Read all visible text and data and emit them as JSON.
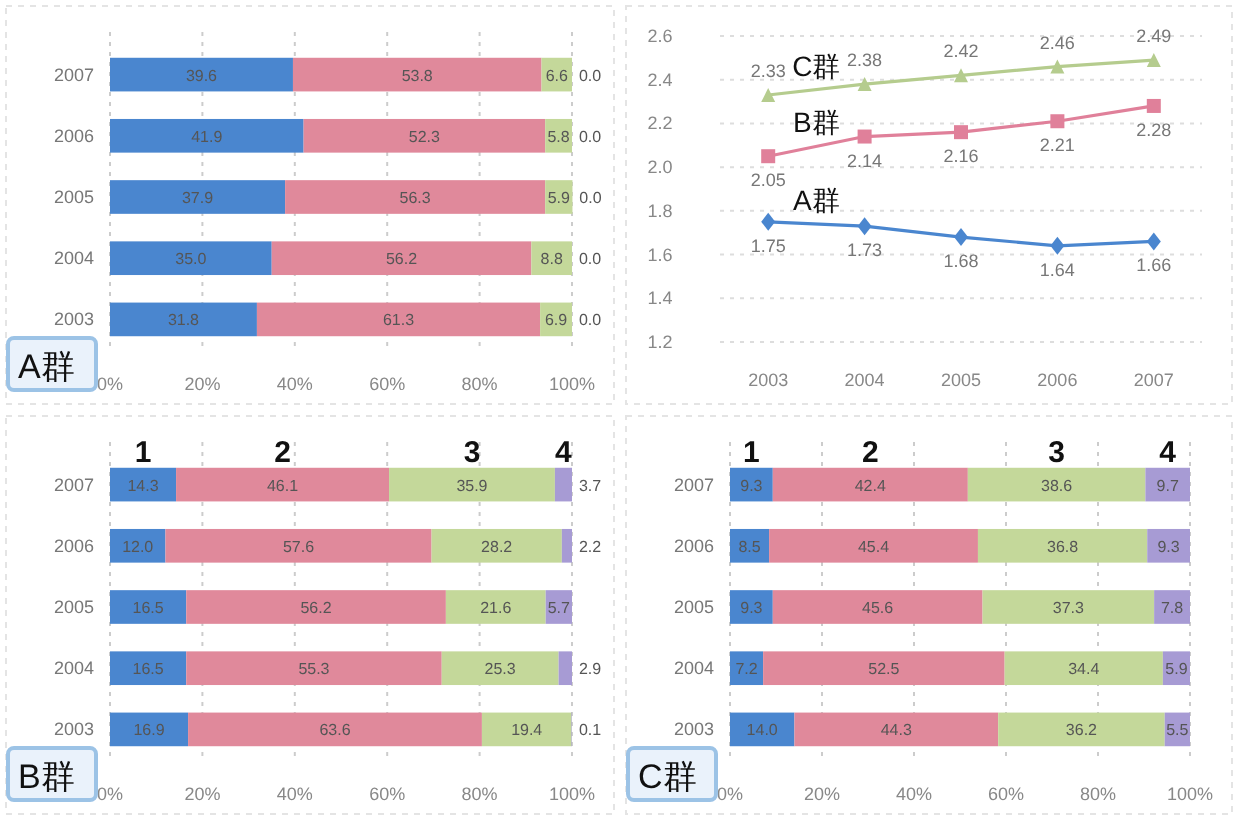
{
  "chart_data": [
    {
      "type": "bar",
      "orientation": "horizontal",
      "stacked": true,
      "title": "A群",
      "grid": "x",
      "categories": [
        "2007",
        "2006",
        "2005",
        "2004",
        "2003"
      ],
      "xlim": [
        0,
        100
      ],
      "xticks": [
        {
          "value": 0,
          "label": "0%"
        },
        {
          "value": 20,
          "label": "20%"
        },
        {
          "value": 40,
          "label": "40%"
        },
        {
          "value": 60,
          "label": "60%"
        },
        {
          "value": 80,
          "label": "80%"
        },
        {
          "value": 100,
          "label": "100%"
        }
      ],
      "series": [
        {
          "color": "#4a86cf",
          "values": [
            39.6,
            41.9,
            37.9,
            35.0,
            31.8
          ],
          "value_labels": [
            "39.6",
            "41.9",
            "37.9",
            "35.0",
            "31.8"
          ]
        },
        {
          "color": "#e0899b",
          "values": [
            53.8,
            52.3,
            56.3,
            56.2,
            61.3
          ],
          "value_labels": [
            "53.8",
            "52.3",
            "56.3",
            "56.2",
            "61.3"
          ]
        },
        {
          "color": "#c4d89a",
          "values": [
            6.6,
            5.8,
            5.9,
            8.8,
            6.9
          ],
          "value_labels": [
            "6.6",
            "5.8",
            "5.9",
            "8.8",
            "6.9"
          ]
        },
        {
          "color": "#a79bd4",
          "values": [
            0,
            0,
            0,
            0,
            0
          ],
          "value_labels": [
            "0.0",
            "0.0",
            "0.0",
            "0.0",
            "0.0"
          ]
        }
      ]
    },
    {
      "type": "line",
      "grid": "y",
      "marker": "circle",
      "data_labels": true,
      "categories": [
        "2003",
        "2004",
        "2005",
        "2006",
        "2007"
      ],
      "ylim": [
        1.2,
        2.6
      ],
      "yticks": [
        {
          "value": 1.2,
          "label": "1.2"
        },
        {
          "value": 1.4,
          "label": "1.4"
        },
        {
          "value": 1.6,
          "label": "1.6"
        },
        {
          "value": 1.8,
          "label": "1.8"
        },
        {
          "value": 2.0,
          "label": "2.0"
        },
        {
          "value": 2.2,
          "label": "2.2"
        },
        {
          "value": 2.4,
          "label": "2.4"
        },
        {
          "value": 2.6,
          "label": "2.6"
        }
      ],
      "series": [
        {
          "name": "A群",
          "color": "#4a86cf",
          "marker": "diamond",
          "values": [
            1.75,
            1.73,
            1.68,
            1.64,
            1.66
          ]
        },
        {
          "name": "B群",
          "color": "#e0809a",
          "marker": "square",
          "values": [
            2.05,
            2.14,
            2.16,
            2.21,
            2.28
          ]
        },
        {
          "name": "C群",
          "color": "#b5cc8e",
          "marker": "triangle",
          "values": [
            2.33,
            2.38,
            2.42,
            2.46,
            2.49
          ]
        }
      ]
    },
    {
      "type": "bar",
      "orientation": "horizontal",
      "stacked": true,
      "title": "B群",
      "grid": "x",
      "categories": [
        "2007",
        "2006",
        "2005",
        "2004",
        "2003"
      ],
      "xlim": [
        0,
        100
      ],
      "xticks": [
        {
          "value": 0,
          "label": "0%"
        },
        {
          "value": 20,
          "label": "20%"
        },
        {
          "value": 40,
          "label": "40%"
        },
        {
          "value": 60,
          "label": "60%"
        },
        {
          "value": 80,
          "label": "80%"
        },
        {
          "value": 100,
          "label": "100%"
        }
      ],
      "series": [
        {
          "name": "1",
          "color": "#4a86cf",
          "values": [
            14.3,
            12.0,
            16.5,
            16.5,
            16.9
          ],
          "value_labels": [
            "14.3",
            "12.0",
            "16.5",
            "16.5",
            "16.9"
          ]
        },
        {
          "name": "2",
          "color": "#e0899b",
          "values": [
            46.1,
            57.6,
            56.2,
            55.3,
            63.6
          ],
          "value_labels": [
            "46.1",
            "57.6",
            "56.2",
            "55.3",
            "63.6"
          ]
        },
        {
          "name": "3",
          "color": "#c4d89a",
          "values": [
            35.9,
            28.2,
            21.6,
            25.3,
            19.4
          ],
          "value_labels": [
            "35.9",
            "28.2",
            "21.6",
            "25.3",
            "19.4"
          ]
        },
        {
          "name": "4",
          "color": "#a79bd4",
          "values": [
            3.7,
            2.2,
            5.7,
            2.9,
            0.1
          ],
          "value_labels": [
            "3.7",
            "2.2",
            "5.7",
            "2.9",
            "0.1"
          ]
        }
      ]
    },
    {
      "type": "bar",
      "orientation": "horizontal",
      "stacked": true,
      "title": "C群",
      "grid": "x",
      "categories": [
        "2007",
        "2006",
        "2005",
        "2004",
        "2003"
      ],
      "xlim": [
        0,
        100
      ],
      "xticks": [
        {
          "value": 0,
          "label": "0%"
        },
        {
          "value": 20,
          "label": "20%"
        },
        {
          "value": 40,
          "label": "40%"
        },
        {
          "value": 60,
          "label": "60%"
        },
        {
          "value": 80,
          "label": "80%"
        },
        {
          "value": 100,
          "label": "100%"
        }
      ],
      "series": [
        {
          "name": "1",
          "color": "#4a86cf",
          "values": [
            9.3,
            8.5,
            9.3,
            7.2,
            14.0
          ],
          "value_labels": [
            "9.3",
            "8.5",
            "9.3",
            "7.2",
            "14.0"
          ]
        },
        {
          "name": "2",
          "color": "#e0899b",
          "values": [
            42.4,
            45.4,
            45.6,
            52.5,
            44.3
          ],
          "value_labels": [
            "42.4",
            "45.4",
            "45.6",
            "52.5",
            "44.3"
          ]
        },
        {
          "name": "3",
          "color": "#c4d89a",
          "values": [
            38.6,
            36.8,
            37.3,
            34.4,
            36.2
          ],
          "value_labels": [
            "38.6",
            "36.8",
            "37.3",
            "34.4",
            "36.2"
          ]
        },
        {
          "name": "4",
          "color": "#a79bd4",
          "values": [
            9.7,
            9.3,
            7.8,
            5.9,
            5.5
          ],
          "value_labels": [
            "9.7",
            "9.3",
            "7.8",
            "5.9",
            "5.5"
          ]
        }
      ]
    }
  ]
}
